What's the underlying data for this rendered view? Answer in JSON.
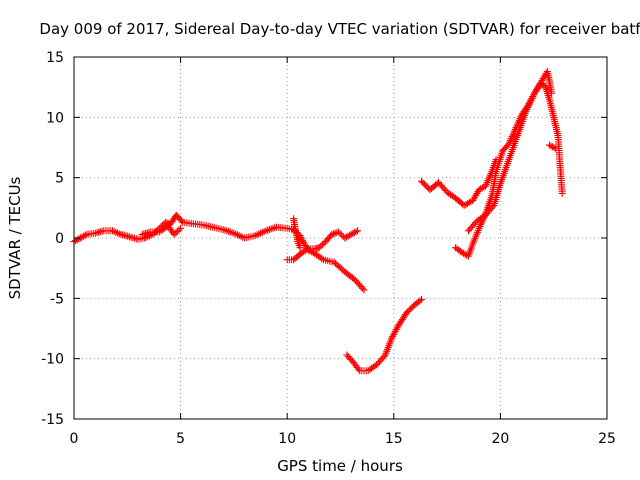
{
  "chart_data": {
    "type": "scatter",
    "title": "Day 009 of 2017, Sidereal Day-to-day VTEC variation (SDTVAR) for receiver batf",
    "xlabel": "GPS time / hours",
    "ylabel": "SDTVAR / TECUs",
    "xlim": [
      0,
      25
    ],
    "ylim": [
      -15,
      15
    ],
    "xticks": [
      0,
      5,
      10,
      15,
      20,
      25
    ],
    "yticks": [
      -15,
      -10,
      -5,
      0,
      5,
      10,
      15
    ],
    "xtick_labels": [
      "0",
      "5",
      "10",
      "15",
      "20",
      "25"
    ],
    "ytick_labels": [
      "-15",
      "-10",
      "-5",
      "0",
      "5",
      "10",
      "15"
    ],
    "grid": true,
    "legend": "none",
    "marker": "plus",
    "color": "#ff0000",
    "series": [
      {
        "points": [
          [
            0.0,
            -0.3
          ],
          [
            0.3,
            0.0
          ],
          [
            0.6,
            0.3
          ],
          [
            1.0,
            0.4
          ],
          [
            1.4,
            0.6
          ],
          [
            1.8,
            0.6
          ],
          [
            2.2,
            0.3
          ],
          [
            2.6,
            0.1
          ],
          [
            3.0,
            -0.1
          ],
          [
            3.3,
            0.0
          ],
          [
            3.7,
            0.3
          ],
          [
            4.0,
            0.8
          ],
          [
            4.3,
            1.3
          ],
          [
            4.5,
            1.1
          ],
          [
            4.8,
            1.9
          ],
          [
            5.1,
            1.3
          ],
          [
            5.5,
            1.2
          ],
          [
            6.0,
            1.1
          ],
          [
            6.5,
            0.9
          ],
          [
            7.0,
            0.7
          ],
          [
            7.5,
            0.4
          ],
          [
            8.0,
            0.0
          ],
          [
            8.5,
            0.2
          ],
          [
            9.0,
            0.6
          ],
          [
            9.5,
            0.9
          ],
          [
            10.0,
            0.8
          ],
          [
            10.3,
            0.7
          ],
          [
            10.6,
            0.2
          ],
          [
            10.8,
            -0.5
          ],
          [
            11.0,
            -1.0
          ],
          [
            11.3,
            -1.3
          ],
          [
            11.7,
            -1.8
          ],
          [
            12.2,
            -2.0
          ],
          [
            12.7,
            -2.8
          ],
          [
            13.2,
            -3.5
          ],
          [
            13.6,
            -4.3
          ]
        ]
      },
      {
        "points": [
          [
            3.2,
            0.3
          ],
          [
            3.6,
            0.5
          ],
          [
            4.0,
            0.5
          ],
          [
            4.4,
            1.0
          ],
          [
            4.7,
            0.3
          ],
          [
            5.0,
            0.8
          ]
        ]
      },
      {
        "points": [
          [
            10.0,
            -1.8
          ],
          [
            10.3,
            -1.8
          ],
          [
            10.5,
            -1.5
          ],
          [
            10.7,
            -1.2
          ],
          [
            11.0,
            -0.9
          ],
          [
            11.3,
            -0.9
          ],
          [
            11.5,
            -0.8
          ],
          [
            11.8,
            -0.3
          ],
          [
            12.1,
            0.3
          ],
          [
            12.4,
            0.5
          ],
          [
            12.7,
            0.0
          ],
          [
            13.0,
            0.3
          ],
          [
            13.3,
            0.6
          ]
        ]
      },
      {
        "points": [
          [
            10.3,
            1.6
          ],
          [
            10.4,
            0.5
          ],
          [
            10.5,
            -0.3
          ],
          [
            10.6,
            -0.8
          ]
        ]
      },
      {
        "points": [
          [
            12.8,
            -9.7
          ],
          [
            13.1,
            -10.3
          ],
          [
            13.4,
            -11.0
          ],
          [
            13.8,
            -11.0
          ],
          [
            14.2,
            -10.5
          ],
          [
            14.6,
            -9.7
          ],
          [
            14.9,
            -8.3
          ],
          [
            15.2,
            -7.3
          ],
          [
            15.6,
            -6.2
          ],
          [
            16.0,
            -5.5
          ],
          [
            16.3,
            -5.1
          ]
        ]
      },
      {
        "points": [
          [
            16.3,
            4.7
          ],
          [
            16.7,
            4.0
          ],
          [
            17.1,
            4.6
          ],
          [
            17.5,
            3.8
          ],
          [
            17.9,
            3.3
          ],
          [
            18.3,
            2.7
          ],
          [
            18.7,
            3.1
          ],
          [
            19.0,
            4.0
          ],
          [
            19.3,
            4.3
          ],
          [
            19.6,
            5.5
          ],
          [
            19.8,
            6.5
          ]
        ]
      },
      {
        "points": [
          [
            17.9,
            -0.8
          ],
          [
            18.2,
            -1.2
          ],
          [
            18.5,
            -1.5
          ],
          [
            18.7,
            -0.5
          ],
          [
            19.0,
            0.8
          ],
          [
            19.3,
            2.0
          ],
          [
            19.6,
            3.5
          ],
          [
            19.8,
            5.5
          ],
          [
            20.1,
            7.2
          ],
          [
            20.4,
            7.8
          ],
          [
            20.7,
            9.0
          ],
          [
            21.0,
            10.2
          ],
          [
            21.3,
            11.0
          ],
          [
            21.6,
            12.0
          ],
          [
            22.0,
            13.2
          ],
          [
            22.2,
            13.8
          ],
          [
            22.3,
            13.0
          ],
          [
            22.4,
            12.0
          ]
        ]
      },
      {
        "points": [
          [
            18.5,
            0.6
          ],
          [
            18.9,
            1.4
          ],
          [
            19.3,
            1.9
          ],
          [
            19.7,
            2.7
          ],
          [
            20.0,
            4.5
          ],
          [
            20.4,
            6.5
          ],
          [
            20.8,
            8.5
          ],
          [
            21.2,
            10.5
          ],
          [
            21.6,
            12.0
          ],
          [
            21.9,
            12.8
          ],
          [
            22.1,
            12.6
          ],
          [
            22.3,
            11.5
          ],
          [
            22.5,
            10.0
          ],
          [
            22.7,
            8.5
          ],
          [
            22.8,
            6.0
          ],
          [
            22.9,
            3.7
          ]
        ]
      },
      {
        "points": [
          [
            22.3,
            7.7
          ],
          [
            22.6,
            7.4
          ]
        ]
      }
    ]
  }
}
